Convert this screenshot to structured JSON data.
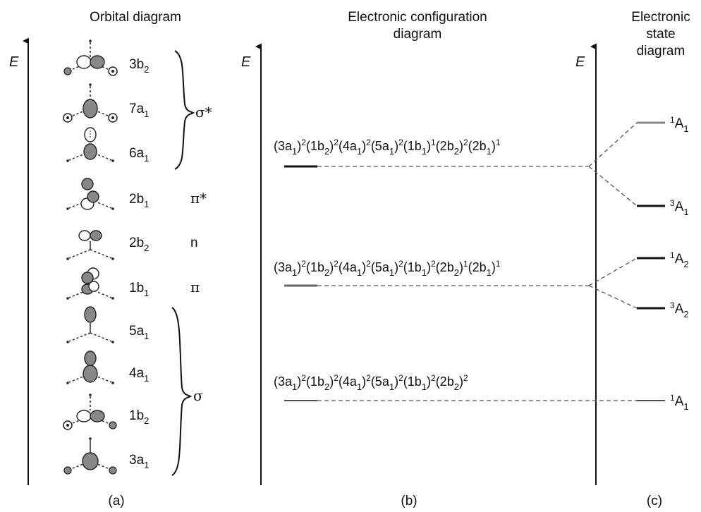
{
  "panels": {
    "a": {
      "title": "Orbital diagram",
      "caption": "(a)",
      "axis": "E"
    },
    "b": {
      "title_line1": "Electronic configuration",
      "title_line2": "diagram",
      "caption": "(b)",
      "axis": "E"
    },
    "c": {
      "title_line1": "Electronic",
      "title_line2": "state",
      "title_line3": "diagram",
      "caption": "(c)",
      "axis": "E"
    }
  },
  "orbitals": [
    {
      "num": "3",
      "sym": "b",
      "sub": "2"
    },
    {
      "num": "7",
      "sym": "a",
      "sub": "1"
    },
    {
      "num": "6",
      "sym": "a",
      "sub": "1"
    },
    {
      "num": "2",
      "sym": "b",
      "sub": "1"
    },
    {
      "num": "2",
      "sym": "b",
      "sub": "2"
    },
    {
      "num": "1",
      "sym": "b",
      "sub": "1"
    },
    {
      "num": "5",
      "sym": "a",
      "sub": "1"
    },
    {
      "num": "4",
      "sym": "a",
      "sub": "1"
    },
    {
      "num": "1",
      "sym": "b",
      "sub": "2"
    },
    {
      "num": "3",
      "sym": "a",
      "sub": "1"
    }
  ],
  "orbital_types": {
    "sigma_star": "σ*",
    "pi_star": "π*",
    "n": "n",
    "pi": "π",
    "sigma": "σ"
  },
  "configurations": [
    {
      "terms": [
        [
          "3a",
          "1",
          "2"
        ],
        [
          "1b",
          "2",
          "2"
        ],
        [
          "4a",
          "1",
          "2"
        ],
        [
          "5a",
          "1",
          "2"
        ],
        [
          "1b",
          "1",
          "1"
        ],
        [
          "2b",
          "2",
          "2"
        ],
        [
          "2b",
          "1",
          "1"
        ]
      ]
    },
    {
      "terms": [
        [
          "3a",
          "1",
          "2"
        ],
        [
          "1b",
          "2",
          "2"
        ],
        [
          "4a",
          "1",
          "2"
        ],
        [
          "5a",
          "1",
          "2"
        ],
        [
          "1b",
          "1",
          "2"
        ],
        [
          "2b",
          "2",
          "1"
        ],
        [
          "2b",
          "1",
          "1"
        ]
      ]
    },
    {
      "terms": [
        [
          "3a",
          "1",
          "2"
        ],
        [
          "1b",
          "2",
          "2"
        ],
        [
          "4a",
          "1",
          "2"
        ],
        [
          "5a",
          "1",
          "2"
        ],
        [
          "1b",
          "1",
          "2"
        ],
        [
          "2b",
          "2",
          "2"
        ]
      ]
    }
  ],
  "states": [
    {
      "mult": "1",
      "sym": "A",
      "sub": "1"
    },
    {
      "mult": "3",
      "sym": "A",
      "sub": "1"
    },
    {
      "mult": "1",
      "sym": "A",
      "sub": "2"
    },
    {
      "mult": "3",
      "sym": "A",
      "sub": "2"
    },
    {
      "mult": "1",
      "sym": "A",
      "sub": "1"
    }
  ]
}
